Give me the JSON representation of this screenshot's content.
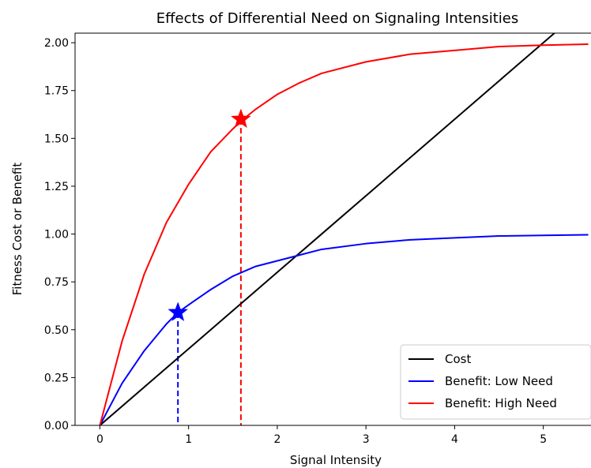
{
  "chart_data": {
    "type": "line",
    "title": "Effects of Differential Need on Signaling Intensities",
    "xlabel": "Signal Intensity",
    "ylabel": "Fitness Cost or Benefit",
    "xlim": [
      -0.28,
      5.6
    ],
    "ylim": [
      0.0,
      2.05
    ],
    "x_ticks": [
      0,
      1,
      2,
      3,
      4,
      5
    ],
    "y_ticks": [
      0.0,
      0.25,
      0.5,
      0.75,
      1.0,
      1.25,
      1.5,
      1.75,
      2.0
    ],
    "x_tick_labels": [
      "0",
      "1",
      "2",
      "3",
      "4",
      "5"
    ],
    "y_tick_labels": [
      "0.00",
      "0.25",
      "0.50",
      "0.75",
      "1.00",
      "1.25",
      "1.50",
      "1.75",
      "2.00"
    ],
    "grid": false,
    "legend_position": "lower-right",
    "series": [
      {
        "name": "Cost",
        "color": "#000000",
        "x": [
          0,
          0.5,
          1.0,
          1.5,
          2.0,
          2.5,
          3.0,
          3.5,
          4.0,
          4.5,
          5.0,
          5.5
        ],
        "y": [
          0.0,
          0.2,
          0.4,
          0.6,
          0.8,
          1.0,
          1.2,
          1.4,
          1.6,
          1.8,
          2.0,
          2.2
        ]
      },
      {
        "name": "Benefit: Low Need",
        "color": "#0000ff",
        "x": [
          0,
          0.25,
          0.5,
          0.75,
          0.88,
          1.0,
          1.25,
          1.5,
          1.75,
          2.0,
          2.25,
          2.5,
          3.0,
          3.5,
          4.0,
          4.5,
          5.0,
          5.5
        ],
        "y": [
          0.0,
          0.22,
          0.39,
          0.53,
          0.59,
          0.63,
          0.71,
          0.78,
          0.83,
          0.86,
          0.89,
          0.92,
          0.95,
          0.97,
          0.98,
          0.99,
          0.993,
          0.996
        ]
      },
      {
        "name": "Benefit: High Need",
        "color": "#ff0000",
        "x": [
          0,
          0.25,
          0.5,
          0.75,
          1.0,
          1.25,
          1.5,
          1.59,
          1.75,
          2.0,
          2.25,
          2.5,
          3.0,
          3.5,
          4.0,
          4.5,
          5.0,
          5.5
        ],
        "y": [
          0.0,
          0.44,
          0.79,
          1.06,
          1.26,
          1.43,
          1.55,
          1.59,
          1.65,
          1.73,
          1.79,
          1.84,
          1.9,
          1.94,
          1.96,
          1.98,
          1.987,
          1.992
        ]
      }
    ],
    "markers": [
      {
        "x": 0.88,
        "y": 0.59,
        "color": "#0000ff",
        "shape": "star"
      },
      {
        "x": 1.59,
        "y": 1.6,
        "color": "#ff0000",
        "shape": "star"
      }
    ],
    "dashed_drops": [
      {
        "x": 0.88,
        "y": 0.59,
        "color": "#0000ff"
      },
      {
        "x": 1.59,
        "y": 1.6,
        "color": "#ff0000"
      }
    ]
  }
}
